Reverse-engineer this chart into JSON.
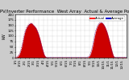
{
  "title": "Solar PV/Inverter Performance  West Array  Actual & Average Power Output",
  "ylabel": "kW",
  "bg_color": "#cccccc",
  "plot_bg": "#ffffff",
  "grid_color": "#888888",
  "fill_color": "#cc0000",
  "line_actual_color": "#ff2222",
  "line_avg_color": "#0000cc",
  "legend_actual": "Actual",
  "legend_avg": "Average",
  "ylim": [
    0,
    200
  ],
  "xlim": [
    0,
    287
  ],
  "yticks": [
    0,
    25,
    50,
    75,
    100,
    125,
    150,
    175,
    200
  ],
  "xtick_pos": [
    0,
    12,
    24,
    36,
    48,
    60,
    72,
    84,
    96,
    108,
    120,
    132,
    144,
    156,
    168,
    180,
    192,
    204,
    216,
    228,
    240,
    252,
    264,
    276
  ],
  "xtick_labels": [
    "1/1",
    "1/15",
    "2/1",
    "2/15",
    "3/1",
    "3/15",
    "4/1",
    "4/15",
    "5/1",
    "5/15",
    "6/1",
    "6/15",
    "7/1",
    "7/15",
    "8/1",
    "8/15",
    "9/1",
    "9/15",
    "10/1",
    "10/15",
    "11/1",
    "11/15",
    "12/1",
    "12/15"
  ],
  "power_data": [
    2,
    2,
    3,
    3,
    4,
    5,
    6,
    8,
    10,
    13,
    16,
    20,
    25,
    30,
    36,
    43,
    50,
    58,
    67,
    76,
    85,
    94,
    102,
    110,
    117,
    123,
    128,
    133,
    137,
    141,
    144,
    147,
    150,
    152,
    154,
    156,
    157,
    158,
    159,
    160,
    160,
    160,
    159,
    158,
    156,
    154,
    152,
    150,
    148,
    146,
    144,
    142,
    140,
    137,
    134,
    130,
    126,
    122,
    117,
    112,
    107,
    101,
    95,
    89,
    82,
    75,
    68,
    61,
    54,
    47,
    40,
    33,
    27,
    21,
    16,
    12,
    8,
    6,
    4,
    3,
    2,
    2,
    1,
    1,
    1,
    1,
    1,
    1,
    1,
    1,
    1,
    1,
    1,
    1,
    1,
    1,
    1,
    1,
    1,
    1,
    1,
    1,
    1,
    1,
    1,
    1,
    1,
    1,
    1,
    1,
    1,
    1,
    1,
    1,
    1,
    1,
    1,
    1,
    1,
    1,
    1,
    1,
    1,
    1,
    1,
    1,
    1,
    1,
    1,
    1,
    1,
    1,
    1,
    1,
    1,
    1,
    1,
    1,
    1,
    1,
    1,
    1,
    1,
    1,
    1,
    1,
    1,
    1,
    1,
    1,
    1,
    1,
    1,
    1,
    1,
    1,
    1,
    1,
    1,
    1,
    1,
    1,
    1,
    1,
    1,
    1,
    1,
    1,
    1,
    1,
    1,
    1,
    1,
    1,
    1,
    1,
    1,
    1,
    1,
    1,
    1,
    1,
    1,
    1,
    1,
    1,
    2,
    2,
    3,
    4,
    5,
    7,
    10,
    13,
    17,
    22,
    28,
    34,
    41,
    49,
    57,
    66,
    75,
    84,
    93,
    102,
    110,
    118,
    125,
    131,
    136,
    141,
    145,
    149,
    152,
    155,
    157,
    159,
    160,
    161,
    162,
    163,
    163,
    162,
    161,
    160,
    158,
    156,
    154,
    151,
    148,
    145,
    141,
    137,
    133,
    128,
    123,
    118,
    112,
    106,
    100,
    93,
    86,
    79,
    72,
    65,
    57,
    50,
    42,
    35,
    28,
    22,
    16,
    11,
    7,
    4,
    3,
    2,
    2,
    2,
    2,
    2,
    2,
    2,
    2,
    2,
    2,
    2,
    2,
    2,
    2,
    2,
    2,
    2,
    2,
    2,
    2,
    2,
    2,
    2,
    2,
    2,
    2,
    2,
    2,
    2,
    2,
    2
  ],
  "avg_data": [
    2,
    2,
    3,
    3,
    4,
    5,
    6,
    8,
    9,
    12,
    15,
    19,
    23,
    28,
    34,
    40,
    47,
    55,
    63,
    72,
    81,
    90,
    98,
    106,
    113,
    119,
    125,
    130,
    134,
    138,
    141,
    144,
    147,
    149,
    151,
    153,
    154,
    155,
    156,
    157,
    158,
    157,
    157,
    156,
    154,
    152,
    150,
    148,
    146,
    144,
    142,
    139,
    137,
    134,
    131,
    127,
    123,
    119,
    114,
    109,
    103,
    97,
    91,
    85,
    78,
    71,
    64,
    57,
    50,
    43,
    36,
    30,
    24,
    18,
    13,
    10,
    7,
    5,
    3,
    2,
    2,
    1,
    1,
    1,
    1,
    1,
    1,
    1,
    1,
    1,
    1,
    1,
    1,
    1,
    1,
    1,
    1,
    1,
    1,
    1,
    1,
    1,
    1,
    1,
    1,
    1,
    1,
    1,
    1,
    1,
    1,
    1,
    1,
    1,
    1,
    1,
    1,
    1,
    1,
    1,
    1,
    1,
    1,
    1,
    1,
    1,
    1,
    1,
    1,
    1,
    1,
    1,
    1,
    1,
    1,
    1,
    1,
    1,
    1,
    1,
    1,
    1,
    1,
    1,
    1,
    1,
    1,
    1,
    1,
    1,
    1,
    1,
    1,
    1,
    1,
    1,
    1,
    1,
    1,
    1,
    1,
    1,
    1,
    1,
    1,
    1,
    1,
    1,
    1,
    1,
    1,
    1,
    1,
    1,
    1,
    1,
    1,
    1,
    1,
    1,
    1,
    1,
    1,
    1,
    2,
    2,
    3,
    3,
    4,
    5,
    6,
    8,
    11,
    14,
    18,
    23,
    29,
    36,
    43,
    51,
    60,
    69,
    78,
    87,
    96,
    104,
    113,
    120,
    127,
    132,
    137,
    142,
    146,
    150,
    153,
    155,
    158,
    159,
    161,
    162,
    162,
    163,
    163,
    162,
    161,
    159,
    157,
    155,
    152,
    149,
    146,
    142,
    138,
    134,
    129,
    124,
    119,
    113,
    107,
    101,
    95,
    88,
    81,
    74,
    67,
    59,
    52,
    44,
    37,
    30,
    23,
    17,
    12,
    8,
    5,
    3,
    2,
    2,
    2,
    2,
    2,
    2,
    2,
    2,
    2,
    2,
    2,
    2,
    2,
    2,
    2,
    2,
    2,
    2,
    2,
    2,
    2,
    2,
    2,
    2,
    2,
    2,
    2,
    2,
    2,
    2,
    2,
    2
  ],
  "title_fontsize": 4.0,
  "tick_fontsize": 3.0,
  "label_fontsize": 3.5
}
